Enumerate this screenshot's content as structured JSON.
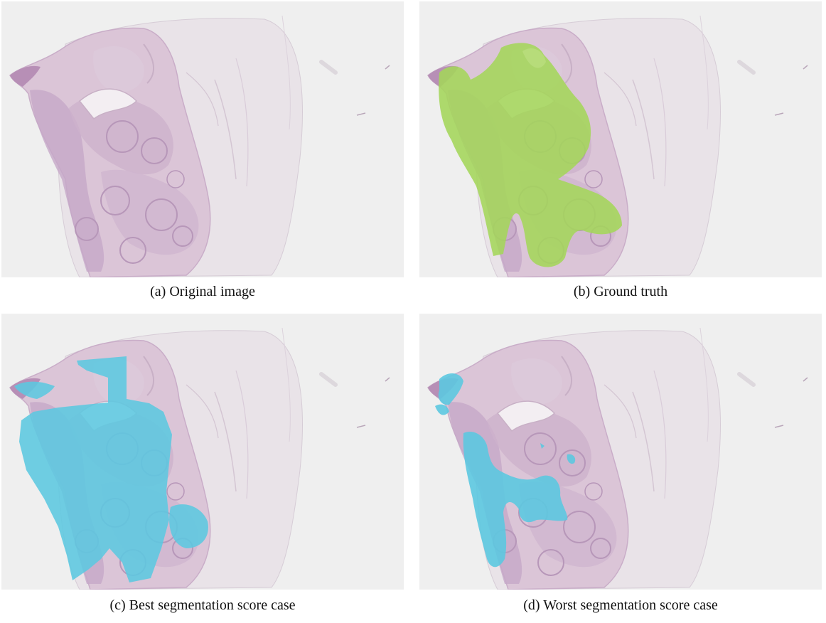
{
  "figure": {
    "panels": [
      {
        "id": "a",
        "caption": "(a) Original image",
        "overlay": "none"
      },
      {
        "id": "b",
        "caption": "(b) Ground truth",
        "overlay": "ground-truth-mask"
      },
      {
        "id": "c",
        "caption": "(c) Best segmentation score case",
        "overlay": "prediction-mask"
      },
      {
        "id": "d",
        "caption": "(d) Worst segmentation score case",
        "overlay": "prediction-mask"
      }
    ],
    "colors": {
      "background": "#efefef",
      "tissue": "#d8c2d4",
      "tissue_dark": "#b79abf",
      "ground_truth_overlay": "#a4d65a",
      "prediction_overlay": "#5cc8e0"
    }
  }
}
